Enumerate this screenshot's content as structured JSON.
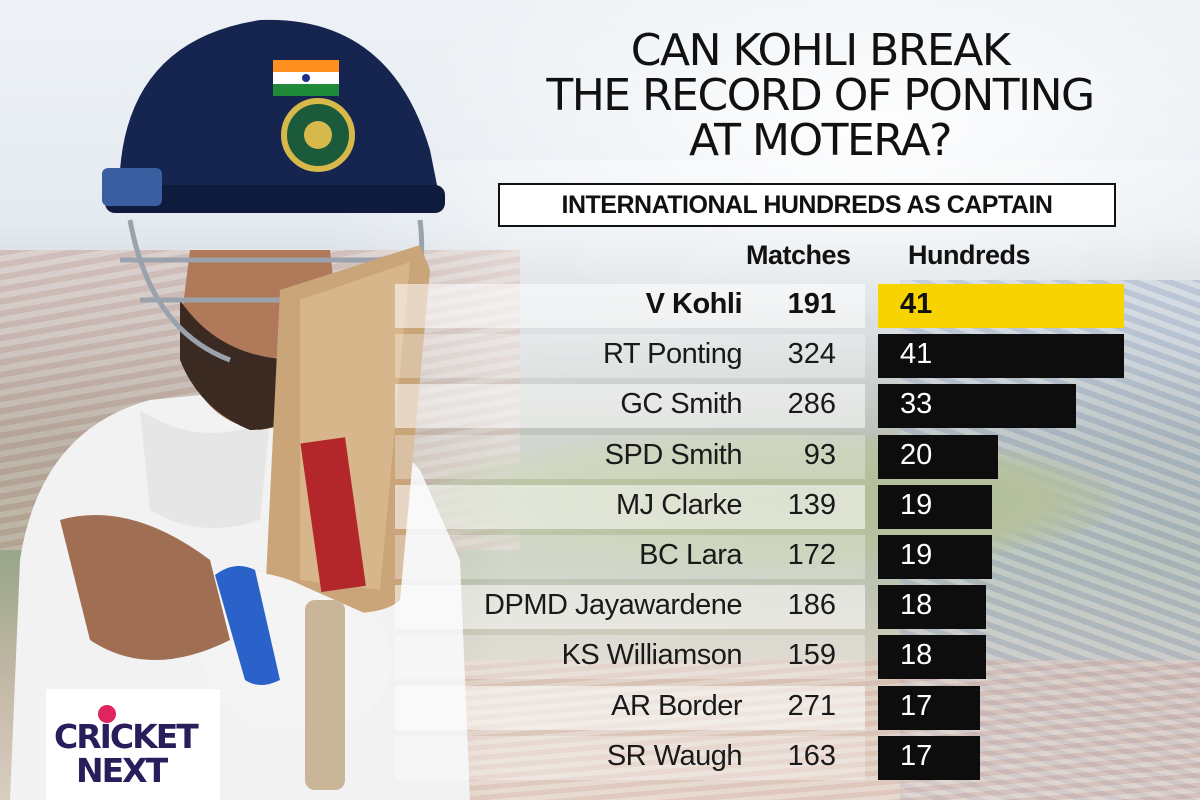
{
  "title": "CAN KOHLI BREAK\nTHE RECORD OF PONTING\nAT MOTERA?",
  "subtitle": "INTERNATIONAL HUNDREDS AS CAPTAIN",
  "columns": {
    "matches": "Matches",
    "hundreds": "Hundreds"
  },
  "colors": {
    "highlight": "#f7d300",
    "bar": "#0d0d0d",
    "logo_text": "#2a1d5c",
    "logo_ball": "#e0245e"
  },
  "logo": {
    "line1": "CRICKET",
    "line2": "NEXT"
  },
  "icons": {
    "player": "cricketer-with-bat-illustration",
    "logo": "cricketnext-logo"
  },
  "chart_data": {
    "type": "table",
    "title": "CAN KOHLI BREAK THE RECORD OF PONTING AT MOTERA?",
    "subtitle": "INTERNATIONAL HUNDREDS AS CAPTAIN",
    "columns": [
      "Matches",
      "Hundreds"
    ],
    "highlight_row": 0,
    "rows": [
      {
        "name": "V Kohli",
        "matches": 191,
        "hundreds": 41
      },
      {
        "name": "RT Ponting",
        "matches": 324,
        "hundreds": 41
      },
      {
        "name": "GC Smith",
        "matches": 286,
        "hundreds": 33
      },
      {
        "name": "SPD Smith",
        "matches": 93,
        "hundreds": 20
      },
      {
        "name": "MJ Clarke",
        "matches": 139,
        "hundreds": 19
      },
      {
        "name": "BC Lara",
        "matches": 172,
        "hundreds": 19
      },
      {
        "name": "DPMD Jayawardene",
        "matches": 186,
        "hundreds": 18
      },
      {
        "name": "KS Williamson",
        "matches": 159,
        "hundreds": 18
      },
      {
        "name": "AR Border",
        "matches": 271,
        "hundreds": 17
      },
      {
        "name": "SR Waugh",
        "matches": 163,
        "hundreds": 17
      }
    ]
  }
}
